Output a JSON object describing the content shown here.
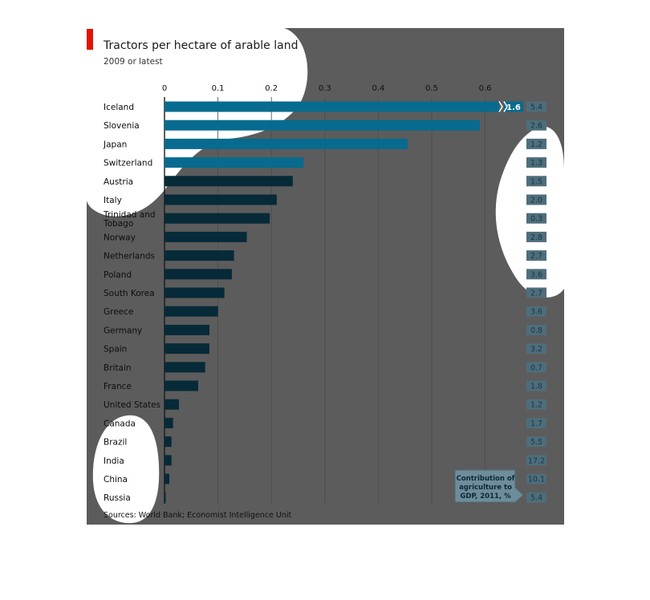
{
  "chart_data": {
    "type": "bar",
    "orientation": "horizontal",
    "title": "Tractors per hectare of arable land",
    "subtitle": "2009 or latest",
    "source": "Sources: World Bank; Economist Intelligence Unit",
    "xlim": [
      0,
      0.7
    ],
    "ticks": [
      "0",
      "0.1",
      "0.2",
      "0.3",
      "0.4",
      "0.5",
      "0.6"
    ],
    "grid": true,
    "categories": [
      "Iceland",
      "Slovenia",
      "Japan",
      "Switzerland",
      "Austria",
      "Italy",
      "Trinidad and Tobago",
      "Norway",
      "Netherlands",
      "Poland",
      "South Korea",
      "Greece",
      "Germany",
      "Spain",
      "Britain",
      "France",
      "United States",
      "Canada",
      "Brazil",
      "India",
      "China",
      "Russia"
    ],
    "values": [
      1.6,
      0.59,
      0.455,
      0.26,
      0.24,
      0.21,
      0.197,
      0.154,
      0.13,
      0.126,
      0.112,
      0.1,
      0.084,
      0.084,
      0.076,
      0.063,
      0.027,
      0.016,
      0.013,
      0.013,
      0.009,
      0.002
    ],
    "value_labels": [
      "1.6",
      "",
      "",
      "",
      "",
      "",
      "",
      "",
      "",
      "",
      "",
      "",
      "",
      "",
      "",
      "",
      "",
      "",
      "",
      "",
      "",
      ""
    ],
    "secondary_series": {
      "name": "Contribution of agriculture to GDP, 2011, %",
      "values": [
        "5.4",
        "2.6",
        "1.2",
        "1.3",
        "1.5",
        "2.0",
        "0.3",
        "2.8",
        "2.7",
        "3.6",
        "2.7",
        "3.6",
        "0.8",
        "3.2",
        "0.7",
        "1.8",
        "1.2",
        "1.7",
        "5.5",
        "17.2",
        "10.1",
        "5.4"
      ]
    },
    "highlighted": [
      "Iceland",
      "Slovenia",
      "Japan",
      "Switzerland"
    ],
    "colors": {
      "accent": "#e3120b",
      "highlight_bar": "#076b8f",
      "bar": "#062a38",
      "gdp_box": "#4f6d7a",
      "overlay": "#5c5c5c"
    }
  }
}
